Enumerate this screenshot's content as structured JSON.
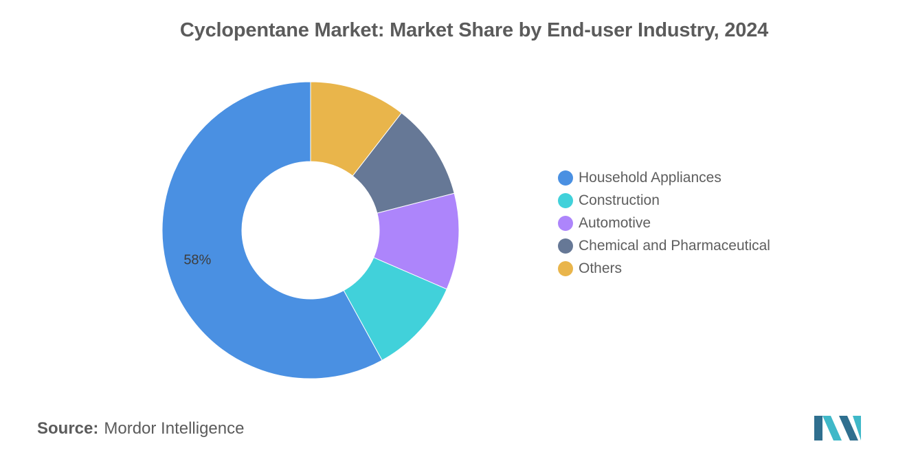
{
  "chart_data": {
    "type": "pie",
    "variant": "donut",
    "title": "Cyclopentane Market: Market Share by End-user Industry, 2024",
    "slices": [
      {
        "label": "Household Appliances",
        "value": 58,
        "data_label": "58%",
        "color": "#4a90e2"
      },
      {
        "label": "Construction",
        "value": 10.5,
        "data_label": "",
        "color": "#41d1da"
      },
      {
        "label": "Automotive",
        "value": 10.5,
        "data_label": "",
        "color": "#ad85fb"
      },
      {
        "label": "Chemical and Pharmaceutical",
        "value": 10.5,
        "data_label": "",
        "color": "#667896"
      },
      {
        "label": "Others",
        "value": 10.5,
        "data_label": "",
        "color": "#e9b54b"
      }
    ],
    "legend_position": "right"
  },
  "source": {
    "key": "Source:",
    "value": "Mordor Intelligence"
  },
  "logo": {
    "icon": "mordor-intelligence-logo-icon",
    "colors": [
      "#2f6f8f",
      "#3fb8c8"
    ]
  }
}
